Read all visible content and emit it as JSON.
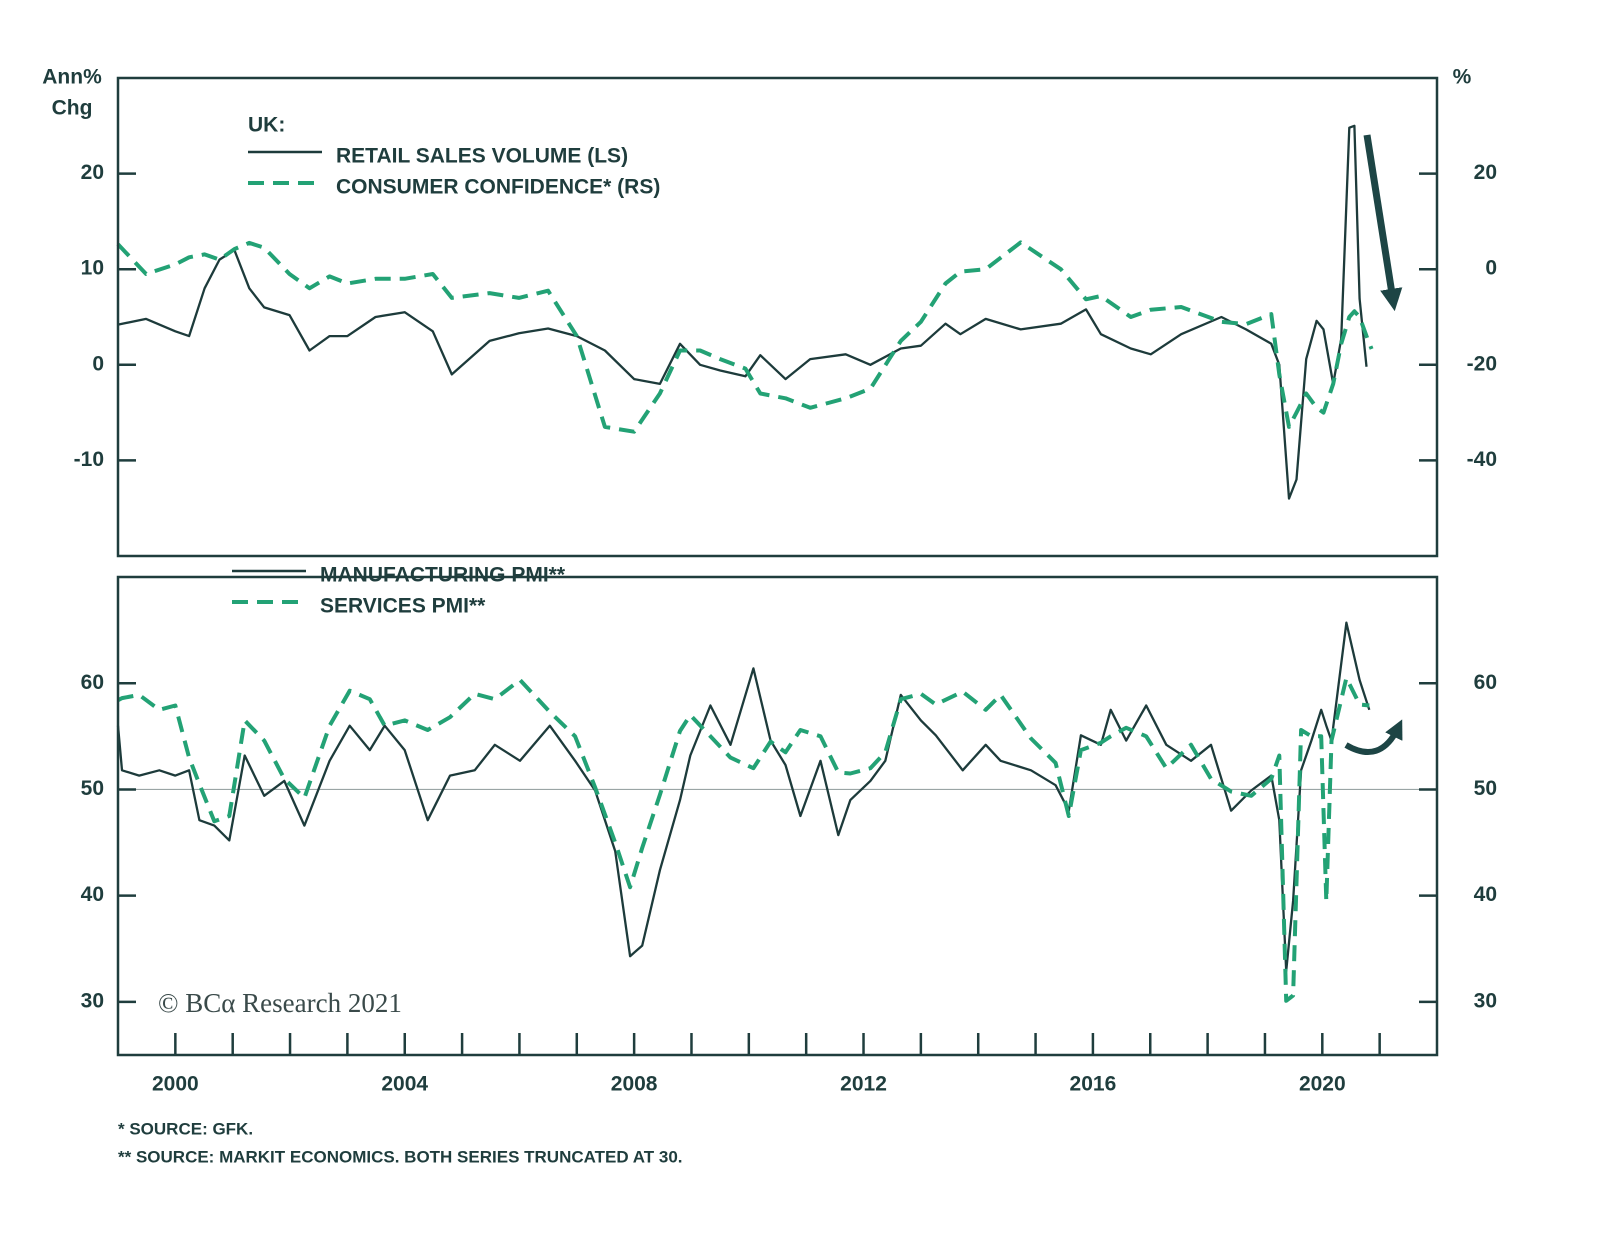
{
  "chart_data": [
    {
      "type": "line",
      "y_label": [
        "Ann%",
        "Chg"
      ],
      "y2_label": "%",
      "legend_title": "UK:",
      "xlim": [
        1999,
        2022
      ],
      "ylim": [
        -20,
        30
      ],
      "yticks": [
        -10,
        0,
        10,
        20
      ],
      "y2lim": [
        -60,
        40
      ],
      "y2ticks": [
        -40,
        -20,
        0,
        20
      ],
      "x": [
        1999,
        1999.49,
        2000,
        2000.24,
        2000.51,
        2000.77,
        2001.03,
        2001.29,
        2001.55,
        2001.99,
        2002.34,
        2002.69,
        2003,
        2003.49,
        2004,
        2004.49,
        2004.82,
        2005.48,
        2005.99,
        2006.5,
        2007,
        2007.49,
        2008,
        2008.45,
        2008.8,
        2009.15,
        2009.5,
        2009.94,
        2010.2,
        2010.64,
        2011.07,
        2011.69,
        2012.12,
        2012.65,
        2013,
        2013.43,
        2013.69,
        2014.13,
        2014.74,
        2015.44,
        2015.88,
        2016.14,
        2016.66,
        2017.01,
        2017.54,
        2018.24,
        2018.67,
        2019.11,
        2019.25,
        2019.42,
        2019.55,
        2019.72,
        2019.9,
        2020.02,
        2020.19,
        2020.33,
        2020.47,
        2020.56,
        2020.65,
        2020.77,
        2020.86
      ],
      "series": [
        {
          "name": "RETAIL SALES VOLUME (LS)",
          "color": "#1d3b3b",
          "dashed": false,
          "values": [
            4.2,
            4.8,
            3.5,
            3,
            8,
            11,
            12,
            8,
            6,
            5.2,
            1.5,
            3,
            3,
            5,
            5.5,
            3.5,
            -1,
            2.5,
            3.3,
            3.8,
            3,
            1.5,
            -1.5,
            -2,
            2.2,
            0,
            -0.6,
            -1.2,
            1,
            -1.5,
            0.6,
            1.1,
            0,
            1.7,
            2,
            4.3,
            3.2,
            4.8,
            3.7,
            4.3,
            5.8,
            3.2,
            1.7,
            1.1,
            3.2,
            5,
            3.7,
            2.2,
            0,
            -14,
            -12,
            0.6,
            4.6,
            3.7,
            -2,
            2.7,
            24.8,
            25,
            6.9,
            -0.2,
            null
          ]
        },
        {
          "name": "CONSUMER CONFIDENCE* (RS)",
          "color": "#23a275",
          "dashed": true,
          "axis": "y2",
          "values": [
            5.2,
            -1,
            1,
            2.5,
            3.1,
            2,
            4.2,
            5.5,
            4.5,
            -1,
            -4,
            -1.5,
            -3,
            -2,
            -2,
            -1,
            -6,
            -5,
            -6,
            -4.5,
            -14,
            -33,
            -34,
            -26,
            -17,
            -17,
            -18.8,
            -20.8,
            -26,
            -27,
            -29,
            -27,
            -25,
            -15,
            -11,
            -3,
            -0.5,
            0,
            5.6,
            0,
            -6.3,
            -5.6,
            -10,
            -8.5,
            -7.9,
            -11,
            -11.5,
            -9.4,
            -22,
            -33,
            -30,
            -26,
            -29,
            -30,
            -24,
            -15.6,
            -10,
            -8.8,
            -10,
            -14,
            -16.7
          ]
        }
      ]
    },
    {
      "type": "line",
      "xlim": [
        1999,
        2022
      ],
      "xticks": [
        2000,
        2004,
        2008,
        2012,
        2016,
        2020
      ],
      "xminor_ticks": [
        2001,
        2002,
        2003,
        2005,
        2006,
        2007,
        2009,
        2010,
        2011,
        2013,
        2014,
        2015,
        2017,
        2018,
        2019,
        2021
      ],
      "ylim": [
        25,
        70
      ],
      "yticks": [
        30,
        40,
        50,
        60
      ],
      "y2lim": [
        25,
        70
      ],
      "y2ticks": [
        30,
        40,
        50,
        60
      ],
      "ref_line": 50,
      "watermark": "© BCα Research 2021",
      "x": [
        1999,
        1999.07,
        1999.37,
        1999.72,
        2000,
        2000.24,
        2000.42,
        2000.68,
        2000.94,
        2001.21,
        2001.55,
        2001.9,
        2002.25,
        2002.69,
        2003.04,
        2003.39,
        2003.65,
        2004,
        2004.4,
        2004.79,
        2005.22,
        2005.57,
        2006.01,
        2006.53,
        2006.97,
        2007.32,
        2007.67,
        2007.93,
        2008.14,
        2008.45,
        2008.8,
        2008.98,
        2009.33,
        2009.68,
        2010.08,
        2010.38,
        2010.64,
        2010.9,
        2011.25,
        2011.56,
        2011.77,
        2012.12,
        2012.38,
        2012.65,
        2013,
        2013.26,
        2013.73,
        2014.13,
        2014.39,
        2014.92,
        2015.35,
        2015.58,
        2015.79,
        2016.14,
        2016.31,
        2016.58,
        2016.93,
        2017.28,
        2017.71,
        2018.06,
        2018.41,
        2018.76,
        2019.11,
        2019.25,
        2019.37,
        2019.49,
        2019.63,
        2019.81,
        2019.98,
        2020.07,
        2020.16,
        2020.42,
        2020.65,
        2020.82
      ],
      "series": [
        {
          "name": "MANUFACTURING PMI**",
          "color": "#1d3b3b",
          "dashed": false,
          "values": [
            56,
            51.8,
            51.3,
            51.8,
            51.3,
            51.8,
            47.1,
            46.6,
            45.2,
            53.2,
            49.4,
            50.8,
            46.6,
            52.7,
            56,
            53.7,
            56,
            53.7,
            47.1,
            51.3,
            51.8,
            54.2,
            52.7,
            56,
            52.7,
            49.9,
            44.2,
            34.3,
            35.3,
            42.4,
            49,
            53.2,
            57.9,
            54.2,
            61.4,
            54.6,
            52.3,
            47.5,
            52.7,
            45.7,
            49,
            50.8,
            52.7,
            58.9,
            56.5,
            55.1,
            51.8,
            54.2,
            52.7,
            51.8,
            50.4,
            48,
            55.1,
            54.2,
            57.5,
            54.6,
            57.9,
            54.2,
            52.7,
            54.2,
            48,
            49.9,
            51.3,
            47.1,
            32.9,
            39.5,
            51.8,
            54.6,
            57.5,
            56,
            54.6,
            65.7,
            60.3,
            57.5
          ]
        },
        {
          "name": "SERVICES PMI**",
          "color": "#23a275",
          "dashed": true,
          "values": [
            58.4,
            58.6,
            58.9,
            57.5,
            57.9,
            53,
            50.5,
            47,
            47.5,
            56.5,
            54.6,
            51,
            49.2,
            56,
            59.3,
            58.5,
            56,
            56.5,
            55.6,
            56.8,
            59,
            58.5,
            60.3,
            57.3,
            55,
            50.2,
            45,
            40.8,
            44.5,
            49.5,
            55.5,
            57,
            55,
            53,
            52,
            54.5,
            53.5,
            55.6,
            55,
            51.6,
            51.5,
            52,
            53.5,
            58.5,
            59,
            58,
            59.2,
            57.5,
            58.9,
            54.8,
            52.5,
            47.5,
            53.7,
            54.4,
            55,
            55.8,
            55,
            52,
            54.2,
            51,
            49.8,
            49.4,
            51,
            53.2,
            30.1,
            30.6,
            55.6,
            55,
            55,
            39.5,
            54.6,
            60.5,
            58,
            57.9
          ]
        }
      ]
    }
  ],
  "notes": [
    "*  SOURCE: GFK.",
    "** SOURCE: MARKIT ECONOMICS. BOTH SERIES TRUNCATED AT 30."
  ]
}
